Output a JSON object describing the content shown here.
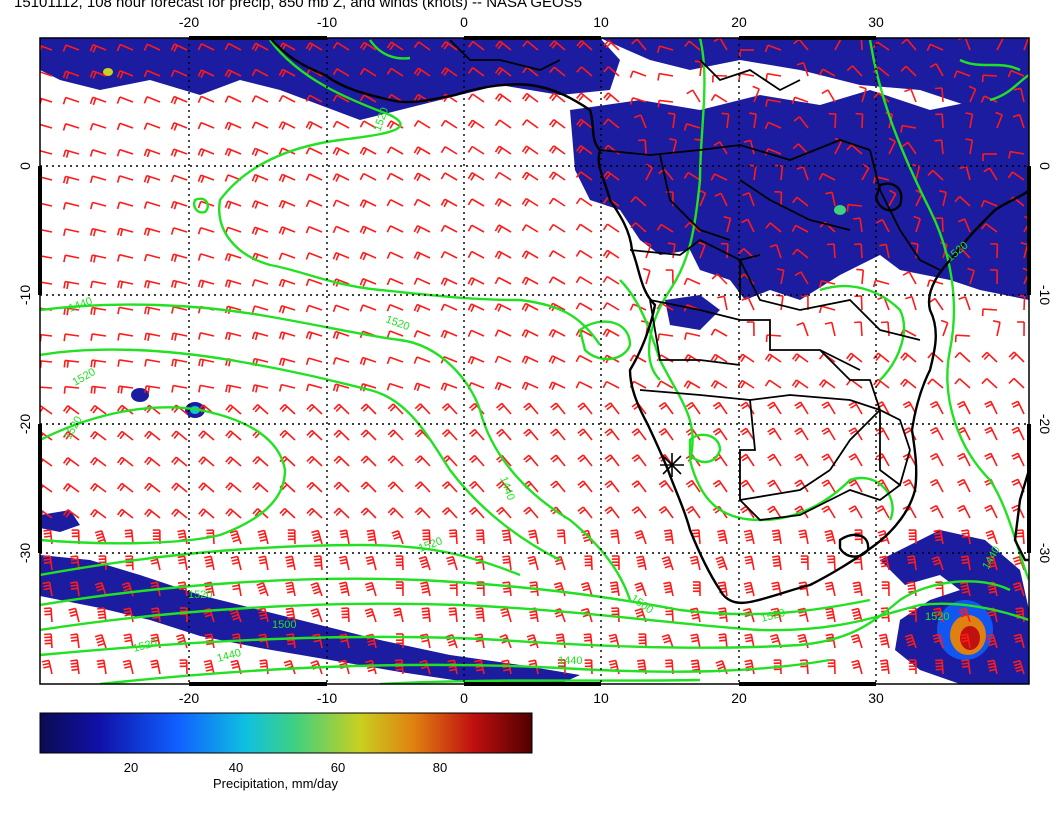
{
  "title": "15101112, 108 hour forecast for precip, 850 mb Z, and winds (knots) -- NASA GEOS5",
  "map": {
    "lon_labels": [
      "-20",
      "-10",
      "0",
      "10",
      "20",
      "30"
    ],
    "lat_labels": [
      "0",
      "-10",
      "-20",
      "-30"
    ],
    "contour_labels": [
      "1520",
      "1440",
      "1520",
      "1520",
      "1440",
      "1520",
      "1520",
      "1520",
      "1500",
      "1500",
      "1520",
      "1440",
      "1440",
      "1520",
      "1520",
      "1520",
      "1440"
    ],
    "colors": {
      "precip_low": "#1a1a9e",
      "contour": "#22e022",
      "wind_barb": "#ff1a1a",
      "coastline": "#000000",
      "grid": "#000000"
    }
  },
  "colorbar": {
    "ticks": [
      "20",
      "40",
      "60",
      "80"
    ],
    "label": "Precipitation, mm/day",
    "stops": [
      "#0b0b50",
      "#1010a8",
      "#1060ff",
      "#10c0e0",
      "#40d080",
      "#c8d020",
      "#e08010",
      "#c01010",
      "#500000"
    ]
  }
}
